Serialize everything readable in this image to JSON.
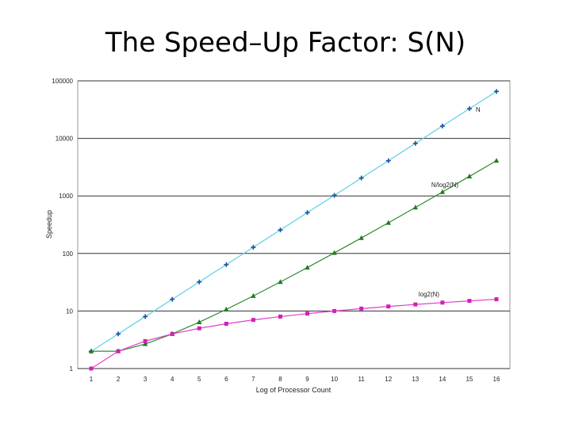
{
  "slide": {
    "title": "The Speed–Up Factor: S(N)"
  },
  "chart_data": {
    "type": "line",
    "title": "",
    "xlabel": "Log of Processor Count",
    "ylabel": "Speedup",
    "x": [
      1,
      2,
      3,
      4,
      5,
      6,
      7,
      8,
      9,
      10,
      11,
      12,
      13,
      14,
      15,
      16
    ],
    "xlim": [
      1,
      16
    ],
    "y_scale": "log",
    "ylim": [
      1,
      100000
    ],
    "y_ticks": [
      1,
      10,
      100,
      1000,
      10000,
      100000
    ],
    "y_tick_labels": [
      "1",
      "10",
      "100",
      "1000",
      "10000",
      "100000"
    ],
    "grid": "horizontal",
    "legend": "inline labels",
    "series": [
      {
        "name": "N",
        "color": "#5bd0e6",
        "marker_color": "#1f4f9e",
        "marker": "plus",
        "values": [
          2,
          4,
          8,
          16,
          32,
          64,
          128,
          256,
          512,
          1024,
          2048,
          4096,
          8192,
          16384,
          32768,
          65536
        ]
      },
      {
        "name": "N/log2(N)",
        "color": "#2e8b2e",
        "marker_color": "#1e7a1e",
        "marker": "triangle",
        "values": [
          2,
          2,
          2.67,
          4,
          6.4,
          10.67,
          18.29,
          32,
          56.89,
          102.4,
          186.18,
          341.33,
          630.15,
          1170.29,
          2184.53,
          4096
        ]
      },
      {
        "name": "log2(N)",
        "color": "#e040c8",
        "marker_color": "#d020b8",
        "marker": "square",
        "values": [
          1,
          2,
          3,
          4,
          5,
          6,
          7,
          8,
          9,
          10,
          11,
          12,
          13,
          14,
          15,
          16
        ]
      }
    ]
  }
}
